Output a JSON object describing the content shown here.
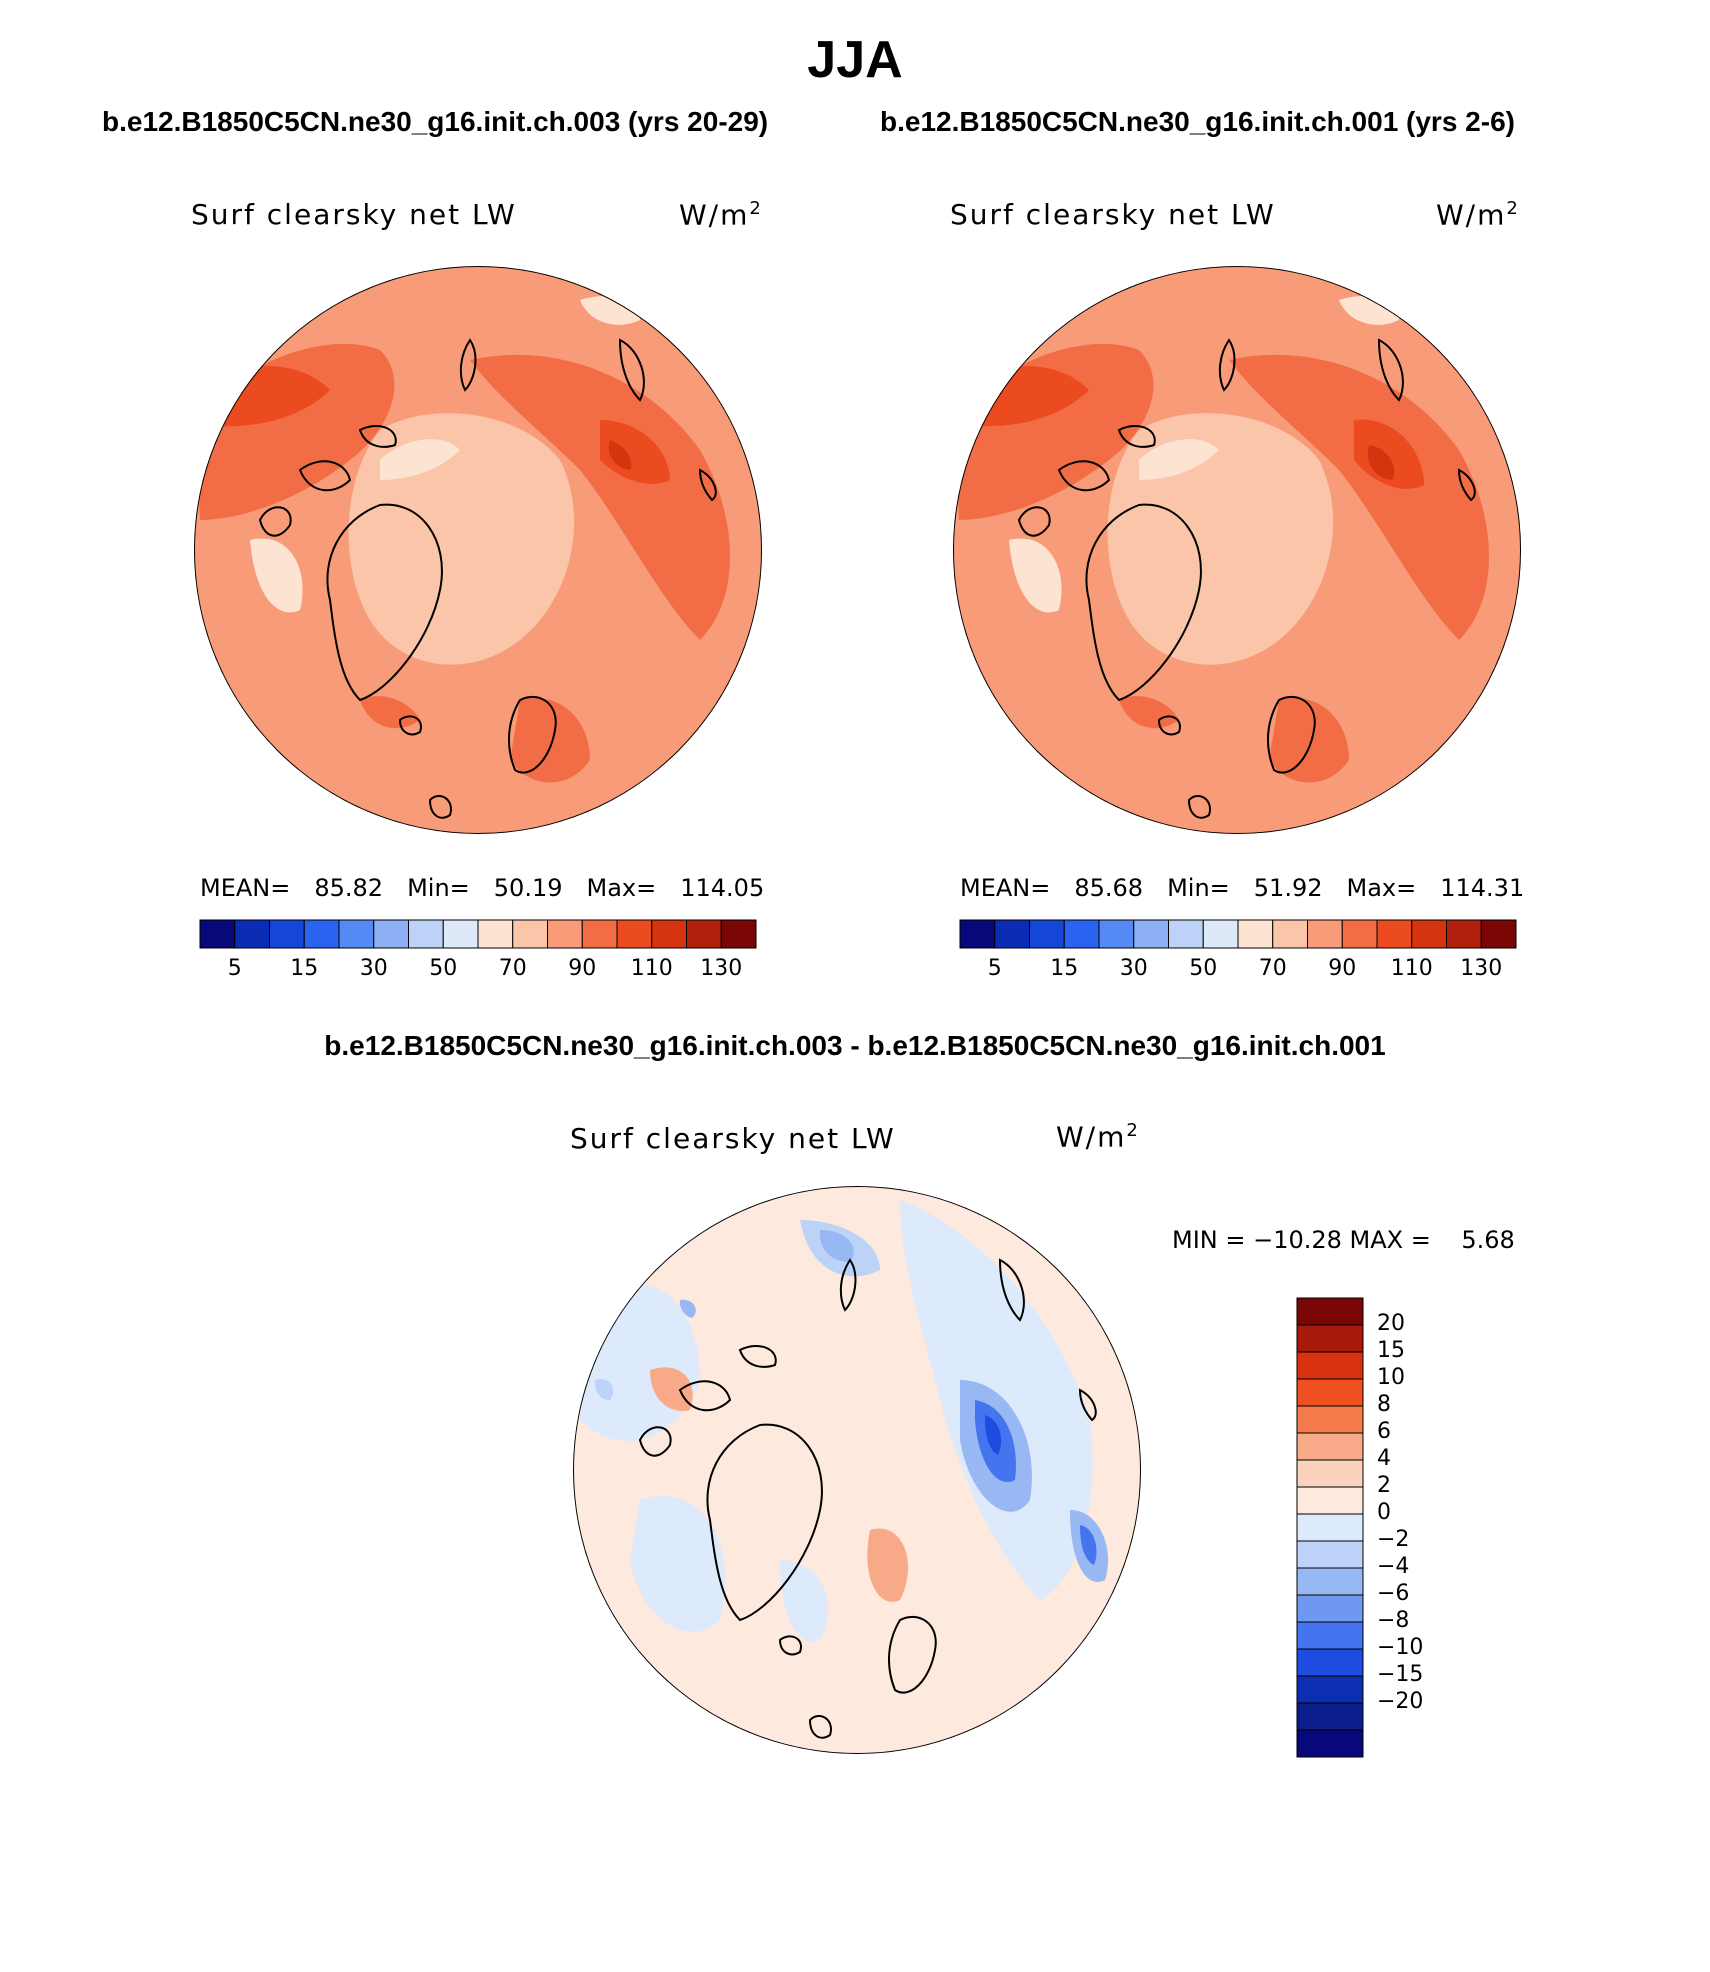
{
  "title": "JJA",
  "case_a_title": "b.e12.B1850C5CN.ne30_g16.init.ch.003 (yrs 20-29)",
  "case_b_title": "b.e12.B1850C5CN.ne30_g16.init.ch.001 (yrs 2-6)",
  "diff_title": "b.e12.B1850C5CN.ne30_g16.init.ch.003 - b.e12.B1850C5CN.ne30_g16.init.ch.001",
  "panels": [
    {
      "variable": "Surf clearsky net LW",
      "units_base": "W/m",
      "units_exp": "2",
      "mean_label": "MEAN=",
      "mean_value": "85.82",
      "min_label": "Min=",
      "min_value": "50.19",
      "max_label": "Max=",
      "max_value": "114.05"
    },
    {
      "variable": "Surf clearsky net LW",
      "units_base": "W/m",
      "units_exp": "2",
      "mean_label": "MEAN=",
      "mean_value": "85.68",
      "min_label": "Min=",
      "min_value": "51.92",
      "max_label": "Max=",
      "max_value": "114.31"
    }
  ],
  "diff_panel": {
    "variable": "Surf clearsky net LW",
    "units_base": "W/m",
    "units_exp": "2",
    "minmax_text": "MIN = −10.28 MAX =    5.68"
  },
  "colorbar_abs": {
    "colors": [
      "#08087a",
      "#0b2cb4",
      "#1447d8",
      "#2a63f0",
      "#5589f3",
      "#8db0f5",
      "#bcd2f7",
      "#dde9f9",
      "#fce3d2",
      "#fbc5a9",
      "#f79b78",
      "#f26d45",
      "#ec4a1f",
      "#d6340e",
      "#b01f0b",
      "#7a0606"
    ],
    "tick_labels": [
      "5",
      "15",
      "30",
      "50",
      "70",
      "90",
      "110",
      "130"
    ]
  },
  "colorbar_diff": {
    "colors": [
      "#7a0606",
      "#a81a0a",
      "#d8320e",
      "#ef5020",
      "#f57a4c",
      "#f8a988",
      "#fbd2bd",
      "#fde9dd",
      "#dceafb",
      "#bcd3f7",
      "#98b8f3",
      "#6f98f1",
      "#4474ee",
      "#1e4ce0",
      "#0b2fb0",
      "#0a1e8c",
      "#08087a"
    ],
    "tick_labels": [
      "20",
      "15",
      "10",
      "8",
      "6",
      "4",
      "2",
      "0",
      "−2",
      "−4",
      "−6",
      "−8",
      "−10",
      "−15",
      "−20"
    ]
  }
}
